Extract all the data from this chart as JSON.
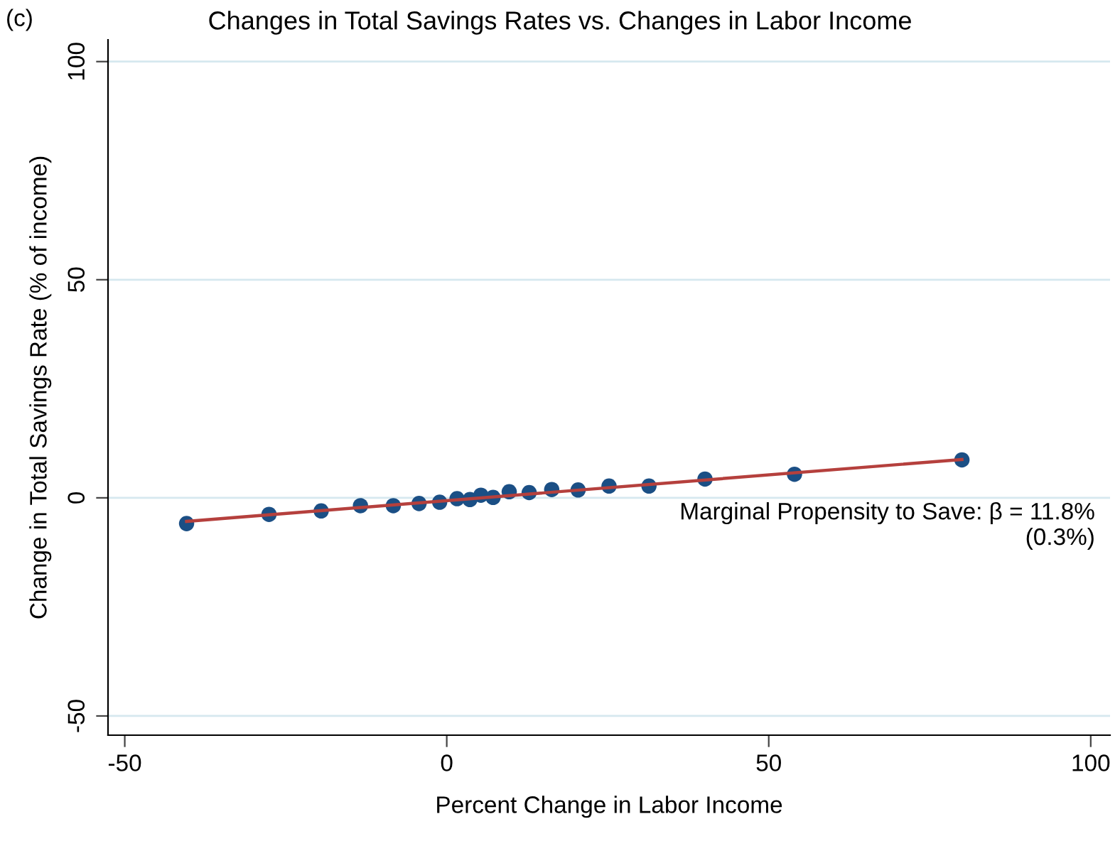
{
  "chart_data": {
    "type": "scatter",
    "title": "Changes in Total Savings Rates vs. Changes in Labor Income",
    "xlabel": "Percent Change in Labor Income",
    "ylabel": "Change in Total Savings Rate (% of income)",
    "annotations": [
      "(c)",
      "Marginal Propensity to Save: β = 11.8%\n(0.3%)"
    ],
    "series": [
      {
        "marker": "circle",
        "color": "#1b4f85",
        "x": [
          -40.4,
          -27.6,
          -19.5,
          -13.4,
          -8.3,
          -4.3,
          -1.1,
          1.6,
          3.6,
          5.3,
          7.2,
          9.7,
          12.8,
          16.3,
          20.4,
          25.2,
          31.4,
          40.1,
          54.0,
          80.0
        ],
        "values": [
          -5.9,
          -3.8,
          -3.0,
          -1.8,
          -1.8,
          -1.3,
          -1.0,
          -0.2,
          -0.4,
          0.6,
          0.1,
          1.4,
          1.2,
          1.9,
          1.8,
          2.7,
          2.7,
          4.3,
          5.4,
          8.7
        ]
      },
      {
        "type": "line",
        "marker": "none",
        "color": "#b5403d",
        "x": [
          -40.4,
          80.0
        ],
        "values": [
          -5.4,
          8.8
        ]
      }
    ],
    "xlim": [
      -52.6,
      103
    ],
    "ylim": [
      -54.4,
      105
    ],
    "xticks": [
      -50,
      0,
      50,
      100
    ],
    "yticks": [
      -50,
      0,
      50,
      100
    ],
    "grid": "y",
    "legend": false
  }
}
